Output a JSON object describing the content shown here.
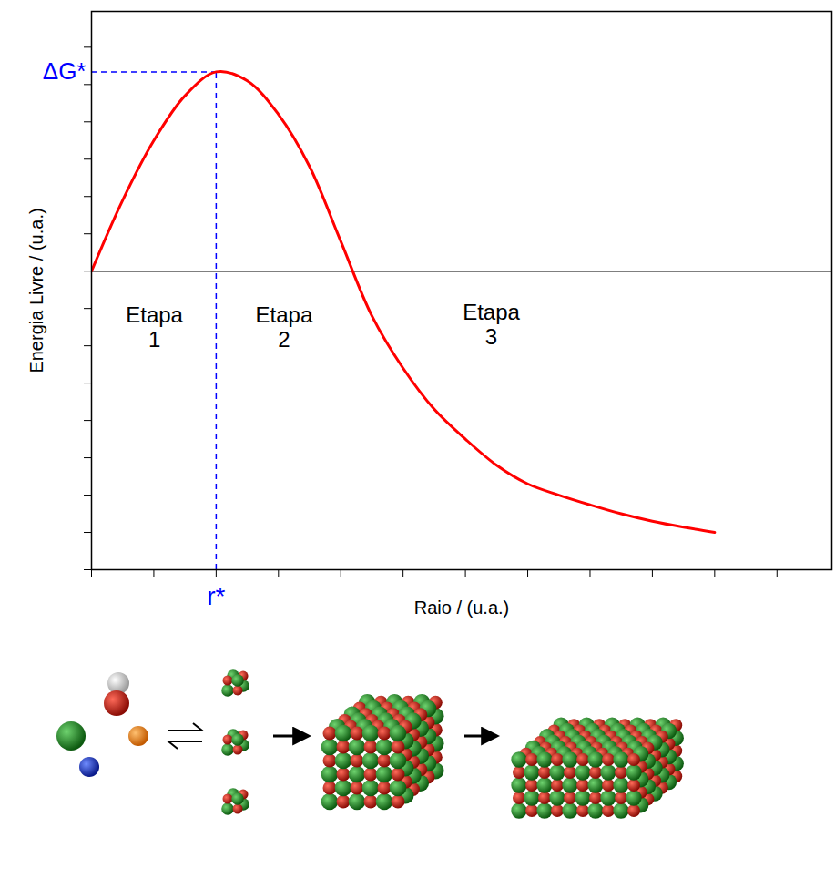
{
  "chart_data": {
    "type": "line",
    "x_label": "Raio / (u.a.)",
    "y_label": "Energia Livre / (u.a.)",
    "x": [
      0,
      0.25,
      0.5,
      0.75,
      1,
      1.25,
      1.5,
      1.75,
      2,
      2.25,
      2.5,
      2.75,
      3,
      3.25,
      3.5,
      3.75,
      4,
      4.25,
      4.5,
      4.75,
      5
    ],
    "values": [
      0,
      0.95,
      1.75,
      2.35,
      2.67,
      2.55,
      2.1,
      1.4,
      0.4,
      -0.6,
      -1.3,
      -1.85,
      -2.25,
      -2.6,
      -2.85,
      -3.0,
      -3.13,
      -3.25,
      -3.35,
      -3.43,
      -3.5
    ],
    "color": "#ff0000",
    "xlim": [
      0,
      5.94
    ],
    "ylim": [
      -4,
      3.48
    ],
    "xticks": [
      0,
      0.5,
      1,
      1.5,
      2,
      2.5,
      3,
      3.5,
      4,
      4.5,
      5,
      5.5
    ],
    "yticks": [
      -4,
      -3.5,
      -3,
      -2.5,
      -2,
      -1.5,
      -1,
      -0.5,
      0,
      0.5,
      1,
      1.5,
      2,
      2.5,
      3
    ],
    "tick_labels": false,
    "annotations": {
      "peak_value_label": "ΔG*",
      "peak_radius_label": "r*",
      "stages": [
        "Etapa 1",
        "Etapa 2",
        "Etapa 3"
      ]
    }
  }
}
